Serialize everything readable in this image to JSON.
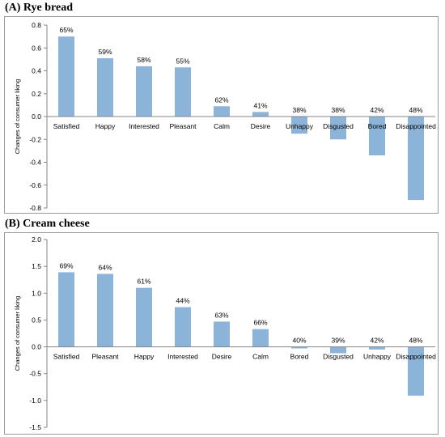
{
  "colors": {
    "bar": "#8cb4d9",
    "axis": "#868686",
    "border": "#9a9a9a"
  },
  "panels": [
    {
      "title": "(A) Rye bread"
    },
    {
      "title": "(B) Cream cheese"
    }
  ],
  "chart_data": [
    {
      "type": "bar",
      "title": "(A) Rye bread",
      "xlabel": "",
      "ylabel": "Changes of consumer liking",
      "categories": [
        "Satisfied",
        "Happy",
        "Interested",
        "Pleasant",
        "Calm",
        "Desire",
        "Unhappy",
        "Disgusted",
        "Bored",
        "Disappointed"
      ],
      "values": [
        0.7,
        0.51,
        0.44,
        0.43,
        0.09,
        0.04,
        -0.15,
        -0.2,
        -0.34,
        -0.73
      ],
      "data_labels": [
        "65%",
        "59%",
        "58%",
        "55%",
        "62%",
        "41%",
        "38%",
        "38%",
        "42%",
        "48%"
      ],
      "ylim": [
        -0.8,
        0.8
      ],
      "yticks": [
        0.8,
        0.6,
        0.4,
        0.2,
        0.0,
        -0.2,
        -0.4,
        -0.6,
        -0.8
      ],
      "ytick_labels": [
        "0.8",
        "0.6",
        "0.4",
        "0.2",
        "0.0",
        "-0.2",
        "-0.4",
        "-0.6",
        "-0.8"
      ],
      "grid": false,
      "legend": "none"
    },
    {
      "type": "bar",
      "title": "(B) Cream cheese",
      "xlabel": "",
      "ylabel": "Changes of consumer liking",
      "categories": [
        "Satisfied",
        "Pleasant",
        "Happy",
        "Interested",
        "Desire",
        "Calm",
        "Bored",
        "Disgusted",
        "Unhappy",
        "Disappointed"
      ],
      "values": [
        1.39,
        1.36,
        1.1,
        0.74,
        0.47,
        0.33,
        -0.03,
        -0.12,
        -0.05,
        -0.91
      ],
      "data_labels": [
        "69%",
        "64%",
        "61%",
        "44%",
        "63%",
        "66%",
        "40%",
        "39%",
        "42%",
        "48%"
      ],
      "ylim": [
        -1.5,
        2.0
      ],
      "yticks": [
        2.0,
        1.5,
        1.0,
        0.5,
        0.0,
        -0.5,
        -1.0,
        -1.5
      ],
      "ytick_labels": [
        "2.0",
        "1.5",
        "1.0",
        "0.5",
        "0.0",
        "-0.5",
        "-1.0",
        "-1.5"
      ],
      "grid": false,
      "legend": "none"
    }
  ]
}
